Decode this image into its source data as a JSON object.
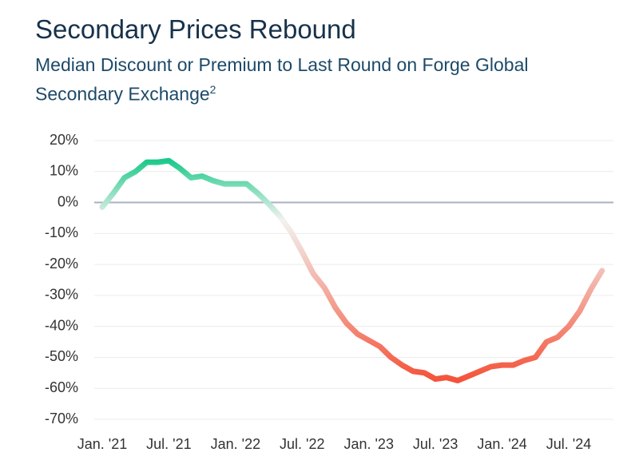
{
  "chart_data": {
    "type": "line",
    "title": "Secondary Prices Rebound",
    "subtitle": "Median Discount or Premium to Last Round on Forge Global Secondary Exchange",
    "subtitle_footnote": "2",
    "categories": [
      "Jan. '21",
      null,
      null,
      null,
      null,
      null,
      "Jul. '21",
      null,
      null,
      null,
      null,
      null,
      "Jan. '22",
      null,
      null,
      null,
      null,
      null,
      "Jul. '22",
      null,
      null,
      null,
      null,
      null,
      "Jan. '23",
      null,
      null,
      null,
      null,
      null,
      "Jul. '23",
      null,
      null,
      null,
      null,
      null,
      "Jan. '24",
      null,
      null,
      null,
      null,
      null,
      "Jul. '24",
      null,
      null,
      null
    ],
    "series": [
      {
        "name": "Median Discount or Premium",
        "gradient": [
          "#1dc98a",
          "#f2f2f0",
          "#f4533a"
        ],
        "values": [
          -1.5,
          3,
          8,
          10,
          13,
          13,
          13.5,
          11,
          8,
          8.5,
          7,
          6,
          6,
          6,
          3,
          -0.5,
          -4.5,
          -9.5,
          -16,
          -23,
          -27.5,
          -34,
          -39,
          -42.5,
          -44.5,
          -46.5,
          -50,
          -52.5,
          -54.5,
          -55,
          -57,
          -56.5,
          -57.5,
          -56,
          -54.5,
          -53,
          -52.5,
          -52.5,
          -51,
          -50,
          -45,
          -43.5,
          -40,
          -35,
          -28,
          -22
        ]
      }
    ],
    "ylim": [
      -70,
      20
    ],
    "yticks": [
      {
        "value": -70,
        "label": "-70%"
      },
      {
        "value": -60,
        "label": "-60%"
      },
      {
        "value": -50,
        "label": "-50%"
      },
      {
        "value": -40,
        "label": "-40%"
      },
      {
        "value": -30,
        "label": "-30%"
      },
      {
        "value": -20,
        "label": "-20%"
      },
      {
        "value": -10,
        "label": "-10%"
      },
      {
        "value": 0,
        "label": "0%"
      },
      {
        "value": 10,
        "label": "10%"
      },
      {
        "value": 20,
        "label": "20%"
      }
    ],
    "grid": true,
    "grid_color": "#ececec",
    "zero_line_color": "#a8b2c0"
  }
}
